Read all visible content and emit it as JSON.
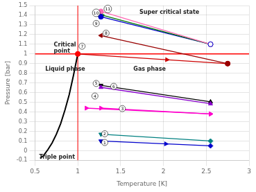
{
  "chart_data": {
    "type": "line",
    "xlabel": "Temperature [K]",
    "ylabel": "Pressure [bar]",
    "xlim": [
      0.5,
      3.0
    ],
    "ylim": [
      -0.1,
      1.5
    ],
    "xticks": [
      0.5,
      1.0,
      1.5,
      2.0,
      2.5,
      3.0
    ],
    "yticks": [
      -0.1,
      0.0,
      0.1,
      0.2,
      0.3,
      0.4,
      0.5,
      0.6,
      0.7,
      0.8,
      0.9,
      1.0,
      1.1,
      1.2,
      1.3,
      1.4,
      1.5
    ],
    "grid": true,
    "series": [
      {
        "x": [
          0.56,
          0.6,
          0.65,
          0.7,
          0.75,
          0.8,
          0.85,
          0.9,
          0.95,
          1.0
        ],
        "values": [
          -0.08,
          -0.05,
          0.01,
          0.08,
          0.17,
          0.28,
          0.42,
          0.58,
          0.78,
          1.0
        ],
        "color": "#000000",
        "marker": "none"
      },
      {
        "x": [
          1.27,
          2.55
        ],
        "values": [
          0.1,
          0.05
        ],
        "color": "#0000cc",
        "marker": [
          "triangle_down",
          "diamond"
        ],
        "arrow": true
      },
      {
        "x": [
          1.27,
          2.55
        ],
        "values": [
          0.17,
          0.1
        ],
        "color": "#008080",
        "marker": [
          "triangle_down",
          "diamond"
        ]
      },
      {
        "x": [
          1.27,
          2.55
        ],
        "values": [
          0.44,
          0.38
        ],
        "color": "#ff00cc",
        "marker": [
          "triangle_right",
          "triangle_right"
        ]
      },
      {
        "x": [
          1.1,
          2.55
        ],
        "values": [
          0.44,
          0.38
        ],
        "color": "#ff00cc",
        "marker": [
          "triangle_right",
          "triangle_right"
        ]
      },
      {
        "x": [
          1.27,
          2.55
        ],
        "values": [
          0.675,
          0.505
        ],
        "color": "#000000",
        "marker": [
          "triangle_down",
          "triangle_up"
        ]
      },
      {
        "x": [
          1.27,
          2.55
        ],
        "values": [
          0.655,
          0.485
        ],
        "color": "#8800cc",
        "marker": [
          "triangle_up",
          "triangle_up"
        ]
      },
      {
        "x": [
          1.0,
          2.75
        ],
        "values": [
          1.0,
          0.9
        ],
        "color": "#cc0000",
        "marker": [
          "circle",
          "circle"
        ],
        "arrow": true
      },
      {
        "x": [
          1.27,
          2.75
        ],
        "values": [
          1.19,
          0.9
        ],
        "color": "#990000",
        "marker": [
          "triangle_left",
          "circle"
        ]
      },
      {
        "x": [
          1.27,
          2.55
        ],
        "values": [
          1.385,
          1.1
        ],
        "color": "#0000cc",
        "marker": [
          "circle",
          "circle"
        ]
      },
      {
        "x": [
          1.27,
          2.55
        ],
        "values": [
          1.405,
          1.1
        ],
        "color": "#007700",
        "marker": [
          "star",
          "diamond"
        ]
      },
      {
        "x": [
          1.27,
          2.55
        ],
        "values": [
          1.44,
          1.1
        ],
        "color": "#ff69b4",
        "marker": [
          "circle",
          "circle"
        ]
      },
      {
        "type": "scatter",
        "x": [
          1.0
        ],
        "values": [
          1.0
        ],
        "color": "#ff0000",
        "marker": "circle"
      },
      {
        "type": "scatter",
        "x": [
          2.55
        ],
        "values": [
          1.1
        ],
        "color": "#0000cc",
        "marker": "open_circle"
      },
      {
        "type": "scatter",
        "x": [
          1.27
        ],
        "values": [
          1.385
        ],
        "color": "#0000cc",
        "marker": "circle"
      }
    ],
    "reference_lines": [
      {
        "axis": "x",
        "value": 1.0,
        "color": "#ff0000"
      },
      {
        "axis": "y",
        "value": 1.0,
        "color": "#ff0000"
      }
    ],
    "annotations": [
      {
        "text": "Liquid phase",
        "x": 0.62,
        "y": 0.84
      },
      {
        "text": "Gas phase",
        "x": 1.65,
        "y": 0.84
      },
      {
        "text": "Super critical state",
        "x": 1.72,
        "y": 1.43
      },
      {
        "text": "Critical\npoint",
        "x": 0.72,
        "y": 1.06
      },
      {
        "text": "Triple point",
        "x": 0.55,
        "y": -0.065
      }
    ],
    "circled_numbers": [
      {
        "text": "1",
        "x": 1.315,
        "y": 0.085
      },
      {
        "text": "2",
        "x": 1.315,
        "y": 0.175
      },
      {
        "text": "3",
        "x": 1.52,
        "y": 0.435
      },
      {
        "text": "4",
        "x": 1.2,
        "y": 0.565
      },
      {
        "text": "5",
        "x": 1.215,
        "y": 0.695
      },
      {
        "text": "6",
        "x": 1.42,
        "y": 0.665
      },
      {
        "text": "7",
        "x": 1.05,
        "y": 1.08
      },
      {
        "text": "8",
        "x": 1.33,
        "y": 1.215
      },
      {
        "text": "9",
        "x": 1.215,
        "y": 1.315
      },
      {
        "text": "10",
        "x": 1.215,
        "y": 1.425
      },
      {
        "text": "11",
        "x": 1.35,
        "y": 1.465
      }
    ]
  }
}
